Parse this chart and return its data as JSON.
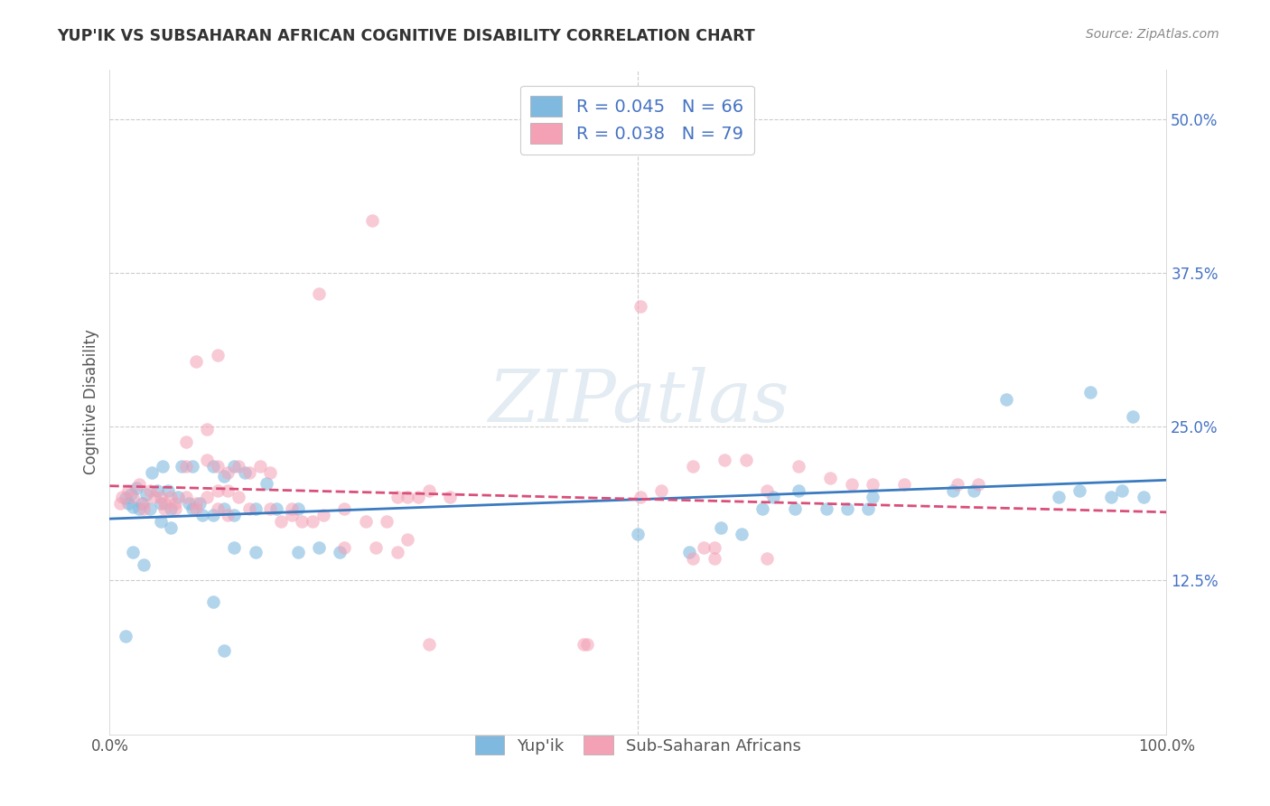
{
  "title": "YUP'IK VS SUBSAHARAN AFRICAN COGNITIVE DISABILITY CORRELATION CHART",
  "source": "Source: ZipAtlas.com",
  "ylabel": "Cognitive Disability",
  "watermark": "ZIPatlas",
  "y_ticks": [
    0.125,
    0.25,
    0.375,
    0.5
  ],
  "y_tick_labels": [
    "12.5%",
    "25.0%",
    "37.5%",
    "50.0%"
  ],
  "x_tick_labels": [
    "0.0%",
    "100.0%"
  ],
  "xlim": [
    0.0,
    1.0
  ],
  "ylim": [
    0.0,
    0.54
  ],
  "blue_color": "#7fb9e0",
  "pink_color": "#f4a0b5",
  "blue_line_color": "#3a7abf",
  "pink_line_color": "#d94f7a",
  "blue_scatter": [
    [
      0.02,
      0.195
    ],
    [
      0.025,
      0.2
    ],
    [
      0.015,
      0.192
    ],
    [
      0.035,
      0.195
    ],
    [
      0.022,
      0.185
    ],
    [
      0.045,
      0.198
    ],
    [
      0.055,
      0.198
    ],
    [
      0.03,
      0.188
    ],
    [
      0.065,
      0.193
    ],
    [
      0.018,
      0.188
    ],
    [
      0.038,
      0.183
    ],
    [
      0.048,
      0.188
    ],
    [
      0.058,
      0.183
    ],
    [
      0.075,
      0.188
    ],
    [
      0.028,
      0.183
    ],
    [
      0.085,
      0.188
    ],
    [
      0.04,
      0.213
    ],
    [
      0.05,
      0.218
    ],
    [
      0.068,
      0.218
    ],
    [
      0.078,
      0.218
    ],
    [
      0.098,
      0.218
    ],
    [
      0.108,
      0.21
    ],
    [
      0.118,
      0.218
    ],
    [
      0.148,
      0.204
    ],
    [
      0.128,
      0.213
    ],
    [
      0.048,
      0.173
    ],
    [
      0.058,
      0.168
    ],
    [
      0.078,
      0.183
    ],
    [
      0.088,
      0.178
    ],
    [
      0.098,
      0.178
    ],
    [
      0.108,
      0.183
    ],
    [
      0.118,
      0.178
    ],
    [
      0.138,
      0.183
    ],
    [
      0.158,
      0.183
    ],
    [
      0.178,
      0.183
    ],
    [
      0.022,
      0.148
    ],
    [
      0.032,
      0.138
    ],
    [
      0.015,
      0.08
    ],
    [
      0.118,
      0.152
    ],
    [
      0.138,
      0.148
    ],
    [
      0.178,
      0.148
    ],
    [
      0.198,
      0.152
    ],
    [
      0.218,
      0.148
    ],
    [
      0.5,
      0.163
    ],
    [
      0.548,
      0.148
    ],
    [
      0.578,
      0.168
    ],
    [
      0.598,
      0.163
    ],
    [
      0.618,
      0.183
    ],
    [
      0.628,
      0.193
    ],
    [
      0.648,
      0.183
    ],
    [
      0.652,
      0.198
    ],
    [
      0.678,
      0.183
    ],
    [
      0.698,
      0.183
    ],
    [
      0.718,
      0.183
    ],
    [
      0.722,
      0.193
    ],
    [
      0.798,
      0.198
    ],
    [
      0.818,
      0.198
    ],
    [
      0.848,
      0.272
    ],
    [
      0.898,
      0.193
    ],
    [
      0.918,
      0.198
    ],
    [
      0.928,
      0.278
    ],
    [
      0.948,
      0.193
    ],
    [
      0.958,
      0.198
    ],
    [
      0.968,
      0.258
    ],
    [
      0.978,
      0.193
    ],
    [
      0.098,
      0.108
    ],
    [
      0.108,
      0.068
    ]
  ],
  "pink_scatter": [
    [
      0.012,
      0.193
    ],
    [
      0.018,
      0.198
    ],
    [
      0.028,
      0.203
    ],
    [
      0.038,
      0.198
    ],
    [
      0.01,
      0.188
    ],
    [
      0.048,
      0.193
    ],
    [
      0.058,
      0.193
    ],
    [
      0.022,
      0.193
    ],
    [
      0.032,
      0.188
    ],
    [
      0.042,
      0.193
    ],
    [
      0.052,
      0.188
    ],
    [
      0.062,
      0.188
    ],
    [
      0.072,
      0.193
    ],
    [
      0.082,
      0.188
    ],
    [
      0.092,
      0.193
    ],
    [
      0.102,
      0.198
    ],
    [
      0.112,
      0.198
    ],
    [
      0.122,
      0.193
    ],
    [
      0.072,
      0.218
    ],
    [
      0.092,
      0.223
    ],
    [
      0.102,
      0.218
    ],
    [
      0.112,
      0.213
    ],
    [
      0.122,
      0.218
    ],
    [
      0.132,
      0.213
    ],
    [
      0.142,
      0.218
    ],
    [
      0.152,
      0.213
    ],
    [
      0.072,
      0.238
    ],
    [
      0.092,
      0.248
    ],
    [
      0.248,
      0.418
    ],
    [
      0.082,
      0.303
    ],
    [
      0.102,
      0.308
    ],
    [
      0.032,
      0.183
    ],
    [
      0.052,
      0.183
    ],
    [
      0.062,
      0.183
    ],
    [
      0.082,
      0.183
    ],
    [
      0.102,
      0.183
    ],
    [
      0.112,
      0.178
    ],
    [
      0.132,
      0.183
    ],
    [
      0.152,
      0.183
    ],
    [
      0.172,
      0.183
    ],
    [
      0.162,
      0.173
    ],
    [
      0.172,
      0.178
    ],
    [
      0.182,
      0.173
    ],
    [
      0.192,
      0.173
    ],
    [
      0.202,
      0.178
    ],
    [
      0.222,
      0.183
    ],
    [
      0.242,
      0.173
    ],
    [
      0.262,
      0.173
    ],
    [
      0.272,
      0.193
    ],
    [
      0.282,
      0.193
    ],
    [
      0.292,
      0.193
    ],
    [
      0.302,
      0.198
    ],
    [
      0.322,
      0.193
    ],
    [
      0.502,
      0.193
    ],
    [
      0.522,
      0.198
    ],
    [
      0.552,
      0.218
    ],
    [
      0.582,
      0.223
    ],
    [
      0.602,
      0.223
    ],
    [
      0.622,
      0.198
    ],
    [
      0.652,
      0.218
    ],
    [
      0.682,
      0.208
    ],
    [
      0.702,
      0.203
    ],
    [
      0.722,
      0.203
    ],
    [
      0.752,
      0.203
    ],
    [
      0.802,
      0.203
    ],
    [
      0.822,
      0.203
    ],
    [
      0.252,
      0.152
    ],
    [
      0.272,
      0.148
    ],
    [
      0.282,
      0.158
    ],
    [
      0.552,
      0.143
    ],
    [
      0.572,
      0.152
    ],
    [
      0.622,
      0.143
    ],
    [
      0.198,
      0.358
    ],
    [
      0.222,
      0.152
    ],
    [
      0.302,
      0.073
    ],
    [
      0.502,
      0.348
    ],
    [
      0.452,
      0.073
    ],
    [
      0.562,
      0.152
    ],
    [
      0.572,
      0.143
    ],
    [
      0.448,
      0.073
    ]
  ]
}
